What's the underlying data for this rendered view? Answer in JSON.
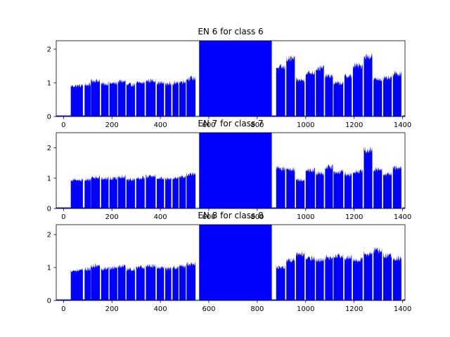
{
  "chart_data": [
    {
      "type": "bar",
      "title": "EN 6 for class 6",
      "xlim": [
        -30,
        1410
      ],
      "ylim": [
        0,
        2.25
      ],
      "xticks": [
        0,
        200,
        400,
        600,
        800,
        1000,
        1200,
        1400
      ],
      "yticks": [
        0,
        1,
        2
      ],
      "grid": false,
      "legend": "none",
      "series": [
        {
          "values": [
            0.97,
            1.0,
            1.13,
            1.03,
            1.05,
            1.11,
            1.0,
            1.06,
            1.13,
            1.06,
            1.03,
            1.06,
            1.1,
            1.2
          ],
          "x_start": [
            30,
            87,
            113,
            155,
            190,
            225,
            260,
            300,
            340,
            385,
            420,
            450,
            478,
            508
          ],
          "x_end": [
            80,
            112,
            150,
            186,
            222,
            256,
            295,
            335,
            380,
            415,
            445,
            475,
            505,
            545
          ],
          "color": "#0000ff"
        },
        {
          "values": [
            2.25
          ],
          "x_start": [
            560
          ],
          "x_end": [
            860
          ],
          "color": "#0000ff"
        },
        {
          "values": [
            1.55,
            1.82,
            1.15,
            1.38,
            1.52,
            1.28,
            1.05,
            1.27,
            1.6,
            1.9,
            1.18,
            1.2,
            1.35
          ],
          "x_start": [
            878,
            920,
            960,
            1000,
            1042,
            1080,
            1115,
            1160,
            1195,
            1240,
            1280,
            1320,
            1360
          ],
          "x_end": [
            915,
            955,
            995,
            1038,
            1075,
            1112,
            1155,
            1190,
            1235,
            1275,
            1315,
            1355,
            1395
          ],
          "color": "#0000ff"
        }
      ],
      "baseline_colors": [
        "#000000",
        "#ff0000",
        "#00cc00",
        "#ff00ff",
        "#00ffff",
        "#ff00ff",
        "#ffff00",
        "#0000ff",
        "#ff0000",
        "#00ff00",
        "#ff00ff",
        "#00ffff",
        "#ffff00"
      ]
    },
    {
      "type": "bar",
      "title": "EN 7 for class 7",
      "xlim": [
        -30,
        1410
      ],
      "ylim": [
        0,
        2.5
      ],
      "xticks": [
        0,
        200,
        400,
        600,
        800,
        1000,
        1200,
        1400
      ],
      "yticks": [
        0,
        1,
        2
      ],
      "grid": false,
      "legend": "none",
      "series": [
        {
          "values": [
            1.0,
            1.0,
            1.1,
            1.05,
            1.05,
            1.1,
            1.02,
            1.07,
            1.13,
            1.06,
            1.04,
            1.06,
            1.1,
            1.2
          ],
          "x_start": [
            30,
            87,
            113,
            155,
            190,
            225,
            260,
            300,
            340,
            385,
            420,
            450,
            478,
            508
          ],
          "x_end": [
            80,
            112,
            150,
            186,
            222,
            256,
            295,
            335,
            380,
            415,
            445,
            475,
            505,
            545
          ],
          "color": "#0000ff"
        },
        {
          "values": [
            2.5
          ],
          "x_start": [
            560
          ],
          "x_end": [
            860
          ],
          "color": "#0000ff"
        },
        {
          "values": [
            1.4,
            1.38,
            1.0,
            1.35,
            1.22,
            1.45,
            1.28,
            1.2,
            1.3,
            2.05,
            1.35,
            1.2,
            1.42
          ],
          "x_start": [
            878,
            920,
            960,
            1000,
            1042,
            1080,
            1115,
            1160,
            1195,
            1240,
            1280,
            1320,
            1360
          ],
          "x_end": [
            915,
            955,
            995,
            1038,
            1075,
            1112,
            1155,
            1190,
            1235,
            1275,
            1315,
            1355,
            1395
          ],
          "color": "#0000ff"
        }
      ],
      "baseline_colors": [
        "#000000",
        "#ff0000",
        "#00cc00",
        "#ff00ff",
        "#00ffff",
        "#ff00ff",
        "#ffff00",
        "#0000ff",
        "#ff0000",
        "#00ff00",
        "#ff00ff",
        "#00ffff",
        "#ffff00"
      ]
    },
    {
      "type": "bar",
      "title": "EN 8 for class 8",
      "xlim": [
        -30,
        1410
      ],
      "ylim": [
        0,
        2.3
      ],
      "xticks": [
        0,
        200,
        400,
        600,
        800,
        1000,
        1200,
        1400
      ],
      "yticks": [
        0,
        1,
        2
      ],
      "grid": false,
      "legend": "none",
      "series": [
        {
          "values": [
            0.97,
            1.0,
            1.12,
            1.03,
            1.05,
            1.1,
            1.0,
            1.06,
            1.12,
            1.06,
            1.03,
            1.06,
            1.1,
            1.18
          ],
          "x_start": [
            30,
            87,
            113,
            155,
            190,
            225,
            260,
            300,
            340,
            385,
            420,
            450,
            478,
            508
          ],
          "x_end": [
            80,
            112,
            150,
            186,
            222,
            256,
            295,
            335,
            380,
            415,
            445,
            475,
            505,
            545
          ],
          "color": "#0000ff"
        },
        {
          "values": [
            2.3
          ],
          "x_start": [
            560
          ],
          "x_end": [
            860
          ],
          "color": "#0000ff"
        },
        {
          "values": [
            1.08,
            1.3,
            1.5,
            1.35,
            1.3,
            1.38,
            1.45,
            1.38,
            1.3,
            1.5,
            1.62,
            1.45,
            1.35
          ],
          "x_start": [
            878,
            920,
            960,
            1000,
            1042,
            1080,
            1115,
            1160,
            1195,
            1240,
            1280,
            1320,
            1360
          ],
          "x_end": [
            915,
            955,
            995,
            1038,
            1075,
            1112,
            1155,
            1190,
            1235,
            1275,
            1315,
            1355,
            1395
          ],
          "color": "#0000ff"
        }
      ],
      "baseline_colors": [
        "#000000",
        "#ff0000",
        "#00cc00",
        "#ff00ff",
        "#00ffff",
        "#ff00ff",
        "#ffff00",
        "#0000ff",
        "#ff0000",
        "#00ff00",
        "#ff00ff",
        "#00ffff",
        "#ffff00"
      ]
    }
  ]
}
